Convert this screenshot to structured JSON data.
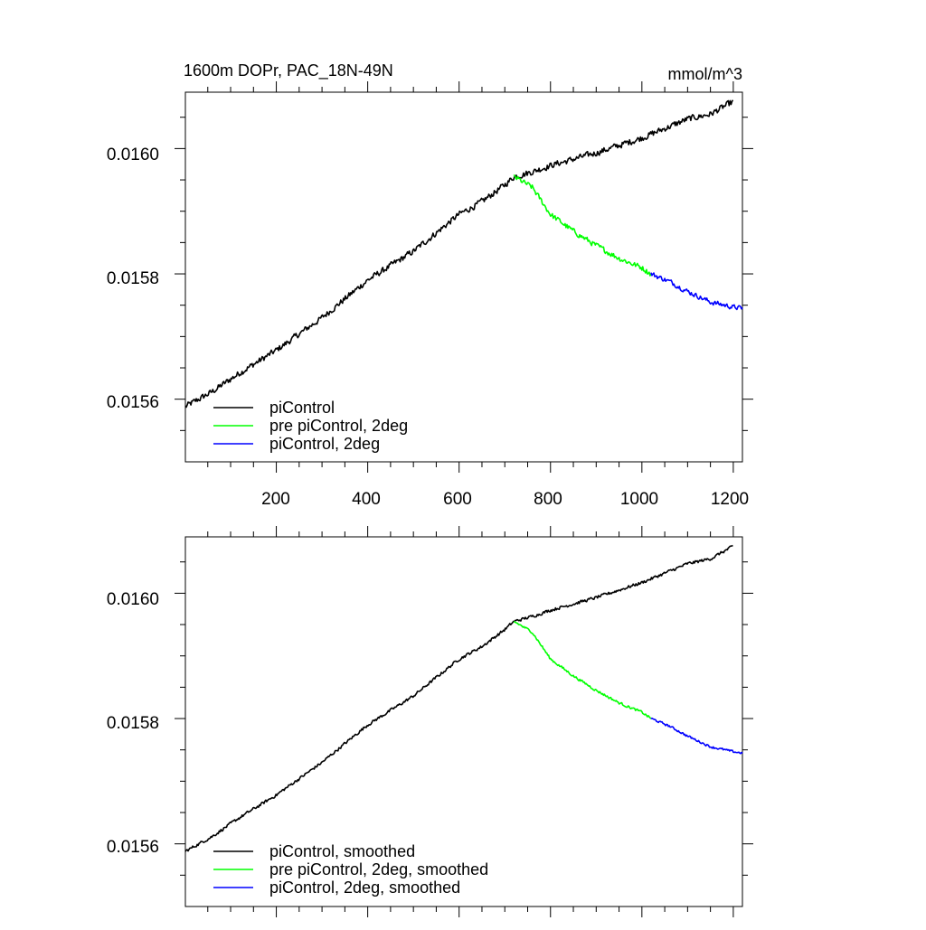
{
  "chart_data": [
    {
      "type": "line",
      "title": "1600m DOPr, PAC_18N-49N",
      "units": "mmol/m^3",
      "xlabel": "",
      "ylabel": "",
      "xlim": [
        1,
        1220
      ],
      "ylim": [
        0.0155,
        0.01609
      ],
      "xticks": [
        200,
        400,
        600,
        800,
        1000,
        1200
      ],
      "xtick_labels": [
        "200",
        "400",
        "600",
        "800",
        "1000",
        "1200"
      ],
      "yticks": [
        0.0156,
        0.0158,
        0.016
      ],
      "ytick_labels": [
        "0.0156",
        "0.0158",
        "0.0160"
      ],
      "grid": false,
      "legend_position": "bottom-left",
      "series": [
        {
          "name": "piControl",
          "color": "#000000",
          "x": [
            1,
            60,
            120,
            200,
            300,
            400,
            500,
            600,
            650,
            700,
            720,
            760,
            800,
            900,
            1000,
            1100,
            1150,
            1200
          ],
          "y": [
            0.015588,
            0.015612,
            0.015642,
            0.015678,
            0.01573,
            0.01579,
            0.015836,
            0.015895,
            0.015915,
            0.015942,
            0.015955,
            0.015963,
            0.015973,
            0.015993,
            0.016017,
            0.016047,
            0.016055,
            0.016075
          ],
          "noise": 4.5e-06
        },
        {
          "name": "pre piControl, 2deg",
          "color": "#00ff00",
          "x": [
            720,
            760,
            800,
            850,
            900,
            950,
            1000,
            1020
          ],
          "y": [
            0.015955,
            0.015938,
            0.015895,
            0.015868,
            0.015845,
            0.015825,
            0.01581,
            0.0158
          ],
          "noise": 4e-06
        },
        {
          "name": "piControl, 2deg",
          "color": "#0000ff",
          "x": [
            1020,
            1060,
            1100,
            1150,
            1200,
            1220
          ],
          "y": [
            0.0158,
            0.015788,
            0.015772,
            0.015755,
            0.015747,
            0.015745
          ],
          "noise": 3.5e-06
        }
      ]
    },
    {
      "type": "line",
      "title": "",
      "units": "",
      "xlabel": "",
      "ylabel": "",
      "xlim": [
        1,
        1220
      ],
      "ylim": [
        0.0155,
        0.01609
      ],
      "xticks": [
        200,
        400,
        600,
        800,
        1000,
        1200
      ],
      "xtick_labels": [],
      "yticks": [
        0.0156,
        0.0158,
        0.016
      ],
      "ytick_labels": [
        "0.0156",
        "0.0158",
        "0.0160"
      ],
      "grid": false,
      "legend_position": "bottom-left",
      "series": [
        {
          "name": "piControl, smoothed",
          "color": "#000000",
          "x": [
            1,
            60,
            120,
            200,
            300,
            400,
            500,
            600,
            650,
            700,
            720,
            760,
            800,
            900,
            1000,
            1100,
            1150,
            1200
          ],
          "y": [
            0.015588,
            0.015612,
            0.015642,
            0.015678,
            0.01573,
            0.01579,
            0.015836,
            0.015895,
            0.015915,
            0.015942,
            0.015955,
            0.015963,
            0.015973,
            0.015993,
            0.016017,
            0.016047,
            0.016055,
            0.016075
          ],
          "noise": 2.2e-06
        },
        {
          "name": "pre piControl, 2deg, smoothed",
          "color": "#00ff00",
          "x": [
            720,
            760,
            800,
            850,
            900,
            950,
            1000,
            1020
          ],
          "y": [
            0.015955,
            0.015938,
            0.015895,
            0.015868,
            0.015845,
            0.015825,
            0.01581,
            0.0158
          ],
          "noise": 1.8e-06
        },
        {
          "name": "piControl, 2deg, smoothed",
          "color": "#0000ff",
          "x": [
            1020,
            1060,
            1100,
            1150,
            1200,
            1220
          ],
          "y": [
            0.0158,
            0.015788,
            0.015772,
            0.015755,
            0.015747,
            0.015745
          ],
          "noise": 1.6e-06
        }
      ]
    }
  ]
}
